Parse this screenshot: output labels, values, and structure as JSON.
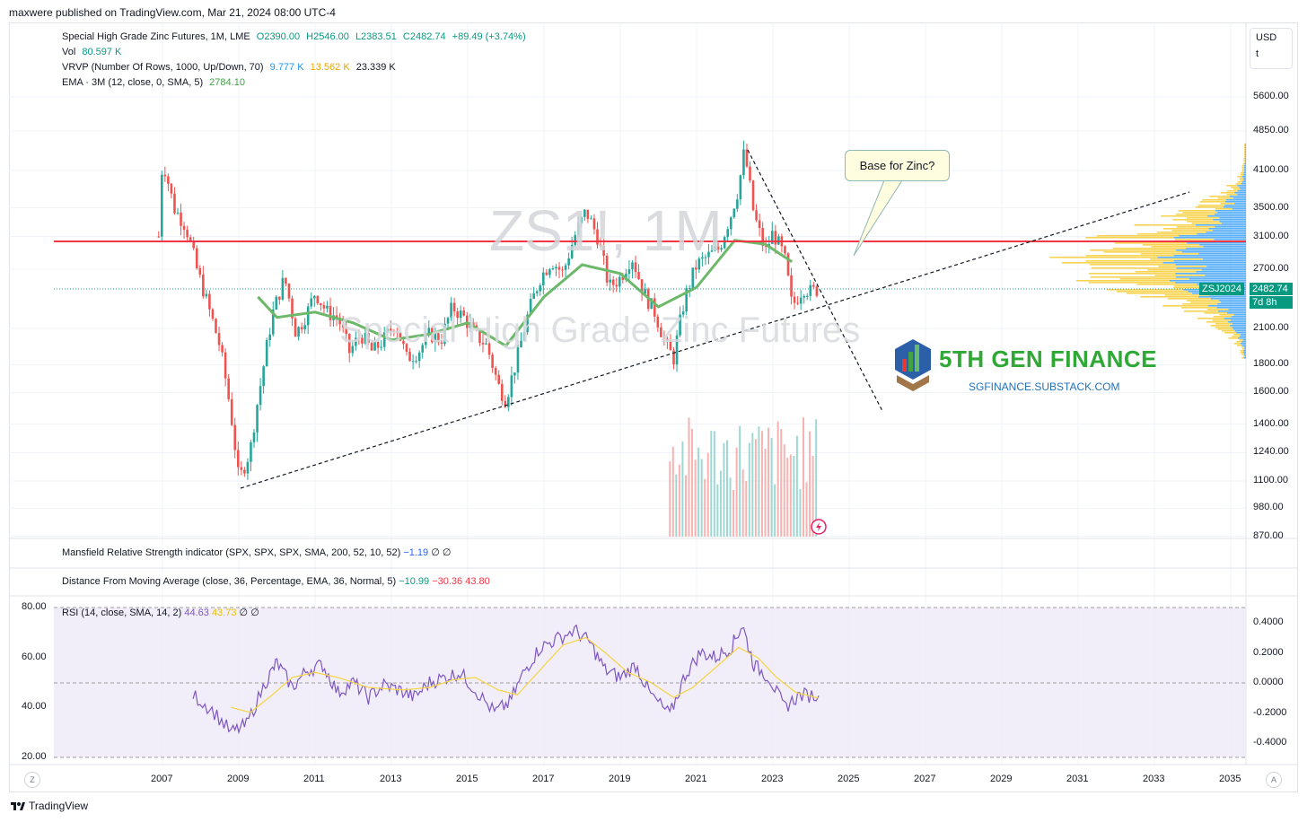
{
  "header": {
    "published": "maxwere published on TradingView.com, Mar 21, 2024 08:00 UTC-4"
  },
  "legend": {
    "symbol": "Special High Grade Zinc Futures, 1M, LME",
    "open": "O2390.00",
    "high": "H2546.00",
    "low": "L2383.51",
    "close": "C2482.74",
    "change": "+89.49 (+3.74%)",
    "vol_label": "Vol",
    "vol_value": "80.597 K",
    "vrvp_label": "VRVP (Number Of Rows, 1000, Up/Down, 70)",
    "vrvp_up": "9.777 K",
    "vrvp_down": "13.562 K",
    "vrvp_total": "23.339 K",
    "ema_label": "EMA · 3M (12, close, 0, SMA, 5)",
    "ema_value": "2784.10"
  },
  "currency": {
    "code": "USD",
    "unit": "t"
  },
  "watermark": {
    "symbol": "ZS1!, 1M",
    "name": "Special High Grade Zinc Futures"
  },
  "callout": {
    "text": "Base for Zinc?"
  },
  "brand": {
    "name": "5TH GEN FINANCE",
    "url": "SGFINANCE.SUBSTACK.COM"
  },
  "price_badge": {
    "symbol": "ZSJ2024",
    "price": "2482.74",
    "countdown": "7d 8h"
  },
  "indicators": {
    "mansfield": {
      "label": "Mansfield Relative Strength indicator (SPX, SPX, SPX, SMA, 200, 52, 10, 52)",
      "v1": "−1.19",
      "v2": "∅",
      "v3": "∅"
    },
    "dfma": {
      "label": "Distance From Moving Average (close, 36, Percentage, EMA, 36, Normal, 5)",
      "v1": "−10.99",
      "v2": "−30.36",
      "v3": "43.80"
    },
    "rsi": {
      "label": "RSI (14, close, SMA, 14, 2)",
      "v1": "44.63",
      "v2": "43.73",
      "v3": "∅",
      "v4": "∅"
    }
  },
  "footer": {
    "brand": "TradingView",
    "z": "Z",
    "a": "A"
  },
  "colors": {
    "up": "#26a69a",
    "down": "#ef5350",
    "ema": "#6db86a",
    "resistance": "#f23645",
    "rsi": "#7e57c2",
    "rsi_ma": "#f5d442",
    "vrvp_up": "#2196f3",
    "vrvp_down": "#f5c518"
  },
  "chart_data": [
    {
      "type": "candlestick",
      "title": "Special High Grade Zinc Futures, 1M, LME",
      "x_ticks": [
        "2007",
        "2009",
        "2011",
        "2013",
        "2015",
        "2017",
        "2019",
        "2021",
        "2023",
        "2025",
        "2027",
        "2029",
        "2031",
        "2033",
        "2035"
      ],
      "y_ticks": [
        "5600.00",
        "4850.00",
        "4100.00",
        "3500.00",
        "3100.00",
        "2700.00",
        "2100.00",
        "1800.00",
        "1600.00",
        "1400.00",
        "1240.00",
        "1100.00",
        "980.00",
        "870.00"
      ],
      "log_scale": true,
      "ohlc_path_points": [
        [
          2006.9,
          3100
        ],
        [
          2007.0,
          4300
        ],
        [
          2007.3,
          3500
        ],
        [
          2007.6,
          3250
        ],
        [
          2007.9,
          2700
        ],
        [
          2008.2,
          2300
        ],
        [
          2008.5,
          1950
        ],
        [
          2008.8,
          1450
        ],
        [
          2009.0,
          1100
        ],
        [
          2009.3,
          1250
        ],
        [
          2009.6,
          1700
        ],
        [
          2009.9,
          2250
        ],
        [
          2010.2,
          2600
        ],
        [
          2010.5,
          2050
        ],
        [
          2010.8,
          2250
        ],
        [
          2011.0,
          2450
        ],
        [
          2011.3,
          2250
        ],
        [
          2011.6,
          2200
        ],
        [
          2011.9,
          1900
        ],
        [
          2012.2,
          2050
        ],
        [
          2012.5,
          1900
        ],
        [
          2012.8,
          2000
        ],
        [
          2013.1,
          2150
        ],
        [
          2013.4,
          1850
        ],
        [
          2013.7,
          1900
        ],
        [
          2014.0,
          2050
        ],
        [
          2014.3,
          2000
        ],
        [
          2014.6,
          2300
        ],
        [
          2014.9,
          2200
        ],
        [
          2015.2,
          2050
        ],
        [
          2015.5,
          1950
        ],
        [
          2015.8,
          1650
        ],
        [
          2016.0,
          1550
        ],
        [
          2016.3,
          1850
        ],
        [
          2016.6,
          2250
        ],
        [
          2016.9,
          2600
        ],
        [
          2017.2,
          2800
        ],
        [
          2017.5,
          2650
        ],
        [
          2017.8,
          3100
        ],
        [
          2018.1,
          3450
        ],
        [
          2018.4,
          3100
        ],
        [
          2018.7,
          2500
        ],
        [
          2019.0,
          2600
        ],
        [
          2019.3,
          2850
        ],
        [
          2019.6,
          2450
        ],
        [
          2019.9,
          2250
        ],
        [
          2020.2,
          1950
        ],
        [
          2020.4,
          1850
        ],
        [
          2020.7,
          2400
        ],
        [
          2021.0,
          2750
        ],
        [
          2021.3,
          2850
        ],
        [
          2021.6,
          2950
        ],
        [
          2021.9,
          3400
        ],
        [
          2022.1,
          3800
        ],
        [
          2022.25,
          4450
        ],
        [
          2022.5,
          3400
        ],
        [
          2022.8,
          2900
        ],
        [
          2023.0,
          3150
        ],
        [
          2023.3,
          2850
        ],
        [
          2023.5,
          2300
        ],
        [
          2023.8,
          2500
        ],
        [
          2024.0,
          2450
        ],
        [
          2024.2,
          2482.74
        ]
      ],
      "ema_points": [
        [
          2009.5,
          2400
        ],
        [
          2010,
          2200
        ],
        [
          2011,
          2250
        ],
        [
          2012,
          2150
        ],
        [
          2013,
          2000
        ],
        [
          2014,
          2050
        ],
        [
          2015,
          2150
        ],
        [
          2016,
          1950
        ],
        [
          2017,
          2400
        ],
        [
          2018,
          2750
        ],
        [
          2019,
          2650
        ],
        [
          2020,
          2300
        ],
        [
          2021,
          2500
        ],
        [
          2022,
          3050
        ],
        [
          2022.8,
          3000
        ],
        [
          2023.5,
          2784.1
        ]
      ],
      "horizontal_resistance": 3050,
      "current_price": 2482.74
    },
    {
      "type": "line",
      "title": "RSI (14, close, SMA, 14, 2)",
      "left_ticks": [
        "80.00",
        "60.00",
        "40.00",
        "20.00"
      ],
      "right_ticks": [
        "0.4000",
        "0.2000",
        "0.0000",
        "-0.2000",
        "-0.4000"
      ],
      "series": [
        {
          "name": "RSI",
          "points": [
            [
              2007.8,
              45
            ],
            [
              2008.3,
              39
            ],
            [
              2008.8,
              30
            ],
            [
              2009.2,
              33
            ],
            [
              2009.7,
              50
            ],
            [
              2010.0,
              58
            ],
            [
              2010.4,
              48
            ],
            [
              2010.8,
              55
            ],
            [
              2011.2,
              57
            ],
            [
              2011.6,
              46
            ],
            [
              2012.0,
              50
            ],
            [
              2012.4,
              44
            ],
            [
              2012.8,
              49
            ],
            [
              2013.2,
              47
            ],
            [
              2013.6,
              44
            ],
            [
              2014.0,
              50
            ],
            [
              2014.4,
              52
            ],
            [
              2014.8,
              54
            ],
            [
              2015.2,
              47
            ],
            [
              2015.7,
              38
            ],
            [
              2016.1,
              42
            ],
            [
              2016.5,
              55
            ],
            [
              2016.9,
              64
            ],
            [
              2017.3,
              67
            ],
            [
              2017.8,
              71
            ],
            [
              2018.2,
              66
            ],
            [
              2018.6,
              55
            ],
            [
              2019.0,
              52
            ],
            [
              2019.4,
              57
            ],
            [
              2019.8,
              45
            ],
            [
              2020.3,
              37
            ],
            [
              2020.7,
              53
            ],
            [
              2021.1,
              62
            ],
            [
              2021.5,
              60
            ],
            [
              2021.9,
              64
            ],
            [
              2022.2,
              73
            ],
            [
              2022.5,
              57
            ],
            [
              2022.9,
              52
            ],
            [
              2023.3,
              40
            ],
            [
              2023.7,
              45
            ],
            [
              2024.2,
              44.63
            ]
          ]
        },
        {
          "name": "RSI MA",
          "points": [
            [
              2008.8,
              40
            ],
            [
              2009.3,
              38
            ],
            [
              2009.8,
              44
            ],
            [
              2010.4,
              52
            ],
            [
              2011.0,
              54
            ],
            [
              2011.6,
              52
            ],
            [
              2012.4,
              48
            ],
            [
              2013.3,
              47
            ],
            [
              2014.0,
              48
            ],
            [
              2014.6,
              51
            ],
            [
              2015.2,
              52
            ],
            [
              2015.8,
              47
            ],
            [
              2016.3,
              45
            ],
            [
              2016.9,
              55
            ],
            [
              2017.5,
              65
            ],
            [
              2018.1,
              68
            ],
            [
              2018.6,
              62
            ],
            [
              2019.2,
              54
            ],
            [
              2019.8,
              50
            ],
            [
              2020.4,
              44
            ],
            [
              2020.9,
              48
            ],
            [
              2021.5,
              56
            ],
            [
              2022.1,
              64
            ],
            [
              2022.6,
              60
            ],
            [
              2023.1,
              52
            ],
            [
              2023.6,
              46
            ],
            [
              2024.2,
              43.73
            ]
          ]
        }
      ]
    }
  ]
}
